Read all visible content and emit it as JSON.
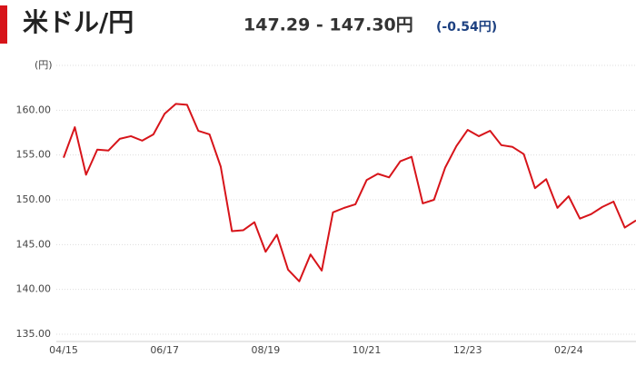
{
  "chart_data": {
    "type": "line",
    "title": "米ドル/円",
    "price": "147.29 - 147.30円",
    "change": "(-0.54円)",
    "y_label": "(円)",
    "categories": [
      "04/15",
      null,
      null,
      null,
      null,
      null,
      null,
      null,
      null,
      "06/17",
      null,
      null,
      null,
      null,
      null,
      null,
      null,
      null,
      "08/19",
      null,
      null,
      null,
      null,
      null,
      null,
      null,
      null,
      "10/21",
      null,
      null,
      null,
      null,
      null,
      null,
      null,
      null,
      "12/23",
      null,
      null,
      null,
      null,
      null,
      null,
      null,
      null,
      "02/24",
      null,
      null,
      null,
      null,
      null,
      null
    ],
    "series": [
      {
        "name": "米ドル/円",
        "color": "#d7141a",
        "values": [
          154.7,
          158.1,
          152.8,
          155.6,
          155.5,
          156.8,
          157.1,
          156.6,
          157.3,
          159.6,
          160.7,
          160.6,
          157.7,
          157.3,
          153.7,
          146.5,
          146.6,
          147.5,
          144.2,
          146.1,
          142.2,
          140.9,
          143.9,
          142.1,
          148.6,
          149.1,
          149.5,
          152.2,
          152.9,
          152.5,
          154.3,
          154.8,
          149.6,
          150.0,
          153.6,
          156.0,
          157.8,
          157.1,
          157.7,
          156.1,
          155.9,
          155.1,
          151.3,
          152.3,
          149.1,
          150.4,
          147.9,
          148.4,
          149.2,
          149.8,
          146.9,
          147.7
        ]
      }
    ],
    "ylim": [
      135,
      165
    ],
    "yticks": [
      {
        "value": 135,
        "label": "135.00"
      },
      {
        "value": 140,
        "label": "140.00"
      },
      {
        "value": 145,
        "label": "145.00"
      },
      {
        "value": 150,
        "label": "150.00"
      },
      {
        "value": 155,
        "label": "155.00"
      },
      {
        "value": 160,
        "label": "160.00"
      },
      165
    ],
    "grid": true
  }
}
